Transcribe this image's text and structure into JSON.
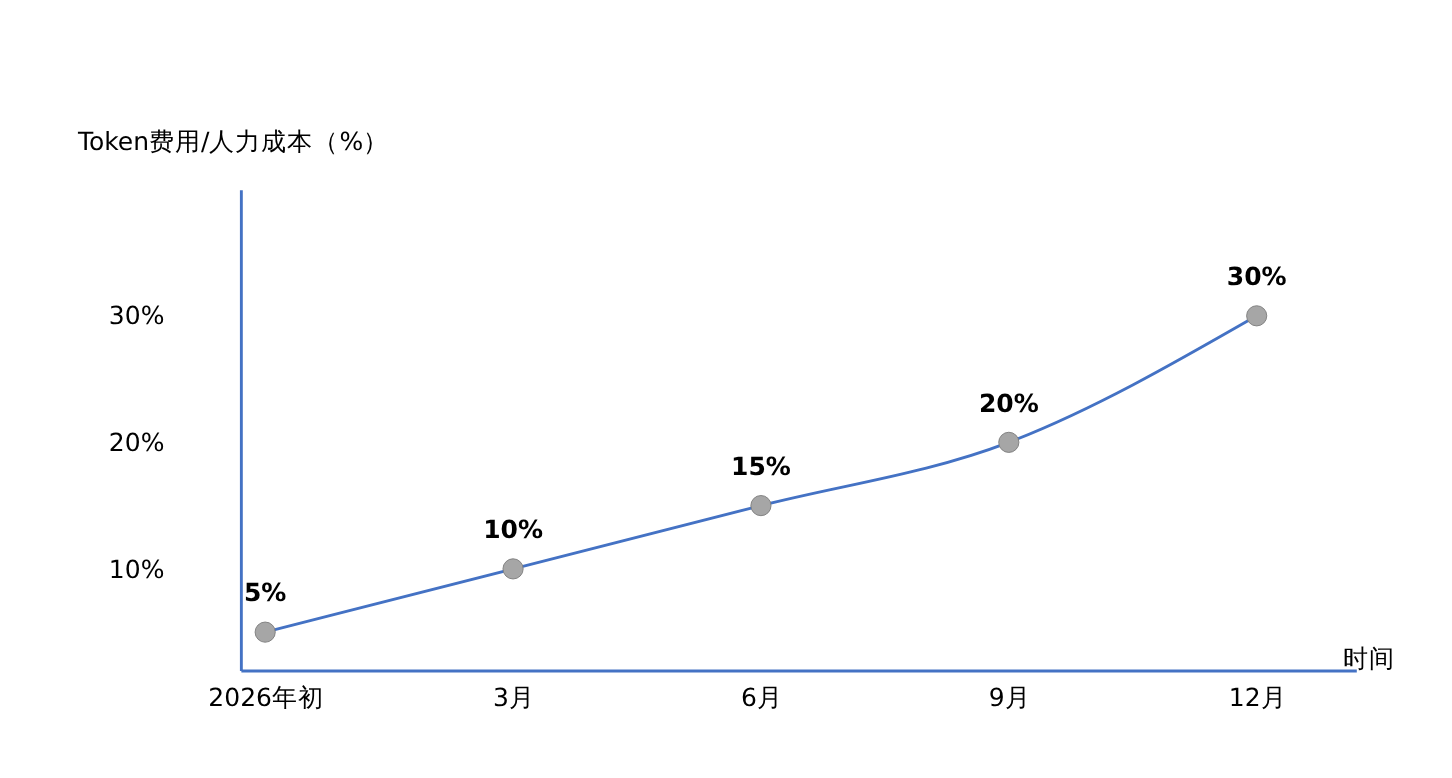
{
  "chart_data": {
    "type": "line",
    "ylabel": "Token费用/人力成本（%）",
    "xlabel": "时间",
    "categories": [
      "2026年初",
      "3月",
      "6月",
      "9月",
      "12月"
    ],
    "series": [
      {
        "color": "#4472c4",
        "values": [
          5,
          10,
          15,
          20,
          30
        ]
      }
    ],
    "value_labels": [
      "5%",
      "10%",
      "15%",
      "20%",
      "30%"
    ],
    "ylim": [
      2,
      40
    ],
    "yticks": [
      {
        "value": 10,
        "label": "10%"
      },
      {
        "value": 20,
        "label": "20%"
      },
      {
        "value": 30,
        "label": "30%"
      }
    ],
    "marker": "circle",
    "line_style": "solid",
    "grid": false
  }
}
